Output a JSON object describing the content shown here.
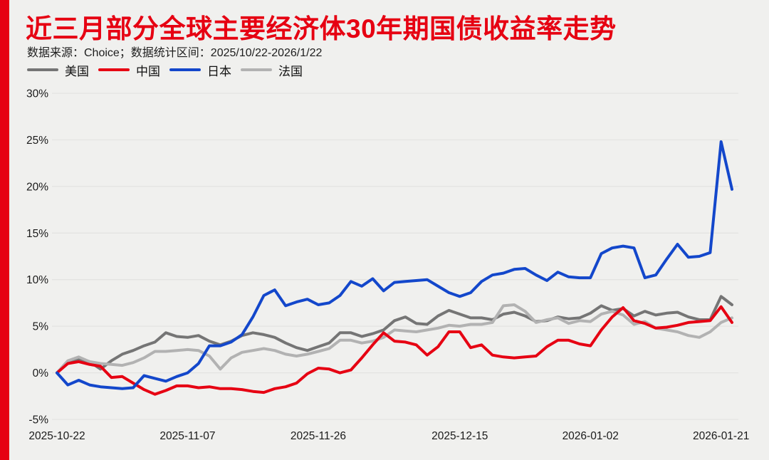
{
  "page": {
    "title": "近三月部分全球主要经济体30年期国债收益率走势",
    "subtitle": "数据来源：Choice；数据统计区间：2025/10/22-2026/1/22",
    "accent_color": "#e60012",
    "background_color": "#f0f0ee"
  },
  "chart_data": {
    "type": "line",
    "title": "近三月部分全球主要经济体30年期国债收益率走势",
    "xlabel": "",
    "ylabel": "",
    "ylim": [
      -5,
      30
    ],
    "y_ticks": [
      30,
      25,
      20,
      15,
      10,
      5,
      0,
      -5
    ],
    "y_tick_suffix": "%",
    "grid": true,
    "legend_position": "top-left",
    "point_count": 63,
    "x_tick_labels": [
      "2025-10-22",
      "2025-11-07",
      "2025-11-26",
      "2025-12-15",
      "2026-01-02",
      "2026-01-21"
    ],
    "x_tick_indices": [
      0,
      12,
      24,
      37,
      49,
      61
    ],
    "series": [
      {
        "key": "us",
        "name": "美国",
        "color": "#757575",
        "values": [
          0,
          1.1,
          1.5,
          1.2,
          0.4,
          1.3,
          2.0,
          2.4,
          2.9,
          3.3,
          4.3,
          3.9,
          3.8,
          4.0,
          3.4,
          3.0,
          3.4,
          4.0,
          4.3,
          4.1,
          3.8,
          3.2,
          2.7,
          2.4,
          2.8,
          3.2,
          4.3,
          4.3,
          3.9,
          4.2,
          4.6,
          5.6,
          6.0,
          5.3,
          5.2,
          6.1,
          6.7,
          6.3,
          5.9,
          5.9,
          5.7,
          6.3,
          6.5,
          6.1,
          5.5,
          5.6,
          6.0,
          5.8,
          5.9,
          6.4,
          7.2,
          6.7,
          6.9,
          6.1,
          6.6,
          6.2,
          6.4,
          6.5,
          6.0,
          5.7,
          5.7,
          8.2,
          7.3
        ]
      },
      {
        "key": "china",
        "name": "中国",
        "color": "#e60012",
        "values": [
          0,
          1.0,
          1.2,
          0.9,
          0.7,
          -0.5,
          -0.4,
          -1.1,
          -1.8,
          -2.3,
          -1.9,
          -1.4,
          -1.4,
          -1.6,
          -1.5,
          -1.7,
          -1.7,
          -1.8,
          -2.0,
          -2.1,
          -1.7,
          -1.5,
          -1.1,
          -0.1,
          0.5,
          0.4,
          0.0,
          0.3,
          1.6,
          3.0,
          4.3,
          3.4,
          3.3,
          3.0,
          1.9,
          2.8,
          4.4,
          4.4,
          2.7,
          3.0,
          1.9,
          1.7,
          1.6,
          1.7,
          1.8,
          2.8,
          3.5,
          3.5,
          3.1,
          2.9,
          4.6,
          6.0,
          7.0,
          5.6,
          5.3,
          4.8,
          4.9,
          5.1,
          5.4,
          5.5,
          5.6,
          7.1,
          5.4
        ]
      },
      {
        "key": "japan",
        "name": "日本",
        "color": "#1347cb",
        "values": [
          0,
          -1.3,
          -0.8,
          -1.3,
          -1.5,
          -1.6,
          -1.7,
          -1.6,
          -0.3,
          -0.6,
          -0.9,
          -0.4,
          0.0,
          1.0,
          2.9,
          2.9,
          3.3,
          4.1,
          6.0,
          8.3,
          8.9,
          7.2,
          7.6,
          7.9,
          7.3,
          7.5,
          8.3,
          9.8,
          9.3,
          10.1,
          8.8,
          9.7,
          9.8,
          9.9,
          10.0,
          9.3,
          8.6,
          8.2,
          8.6,
          9.8,
          10.5,
          10.7,
          11.1,
          11.2,
          10.5,
          9.9,
          10.8,
          10.3,
          10.2,
          10.2,
          12.8,
          13.4,
          13.6,
          13.4,
          10.2,
          10.5,
          12.2,
          13.8,
          12.4,
          12.5,
          12.9,
          24.8,
          19.7
        ]
      },
      {
        "key": "france",
        "name": "法国",
        "color": "#b2b2b2",
        "values": [
          0,
          1.3,
          1.7,
          1.2,
          1.0,
          0.9,
          0.8,
          1.1,
          1.6,
          2.3,
          2.3,
          2.4,
          2.5,
          2.4,
          1.8,
          0.4,
          1.6,
          2.2,
          2.4,
          2.6,
          2.4,
          2.0,
          1.8,
          2.0,
          2.3,
          2.6,
          3.5,
          3.5,
          3.2,
          3.4,
          3.8,
          4.6,
          4.5,
          4.4,
          4.6,
          4.8,
          5.1,
          5.0,
          5.2,
          5.2,
          5.4,
          7.2,
          7.3,
          6.6,
          5.4,
          5.7,
          5.9,
          5.3,
          5.6,
          5.5,
          6.3,
          6.6,
          6.2,
          5.2,
          5.5,
          4.8,
          4.6,
          4.4,
          4.0,
          3.8,
          4.4,
          5.4,
          5.9
        ]
      }
    ],
    "draw_order": [
      "us",
      "france",
      "china",
      "japan"
    ]
  }
}
